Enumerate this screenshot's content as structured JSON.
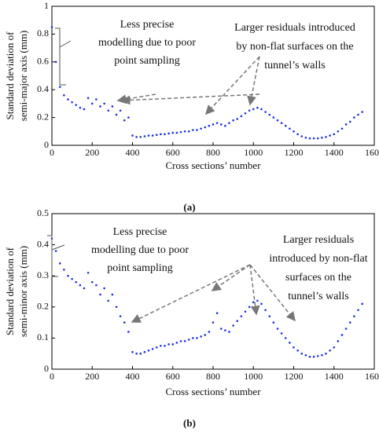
{
  "chart_data": [
    {
      "type": "scatter",
      "caption": "(a)",
      "xlabel": "Cross sections’ number",
      "ylabel": [
        "Standard deviation of",
        "semi-major axis (mm)"
      ],
      "color": "#1f2fe0",
      "xlim": [
        0,
        1600
      ],
      "ylim": [
        0,
        1
      ],
      "xticks": [
        0,
        200,
        400,
        600,
        800,
        1000,
        1200,
        1400,
        1600
      ],
      "yticks": [
        0,
        0.2,
        0.4,
        0.6,
        0.8,
        1
      ],
      "annotations": [
        [
          "Less precise",
          "modelling due to poor",
          "point sampling"
        ],
        [
          "Larger residuals introduced",
          "by non-flat surfaces on the",
          "tunnel’s walls"
        ]
      ],
      "x": [
        0,
        20,
        40,
        60,
        80,
        100,
        120,
        140,
        160,
        180,
        200,
        220,
        240,
        260,
        280,
        300,
        320,
        340,
        360,
        380,
        400,
        420,
        440,
        460,
        480,
        500,
        520,
        540,
        560,
        580,
        600,
        620,
        640,
        660,
        680,
        700,
        720,
        740,
        760,
        780,
        800,
        820,
        840,
        860,
        880,
        900,
        920,
        940,
        960,
        980,
        1000,
        1020,
        1040,
        1060,
        1080,
        1100,
        1120,
        1140,
        1160,
        1180,
        1200,
        1220,
        1240,
        1260,
        1280,
        1300,
        1320,
        1340,
        1360,
        1380,
        1400,
        1420,
        1440,
        1460,
        1480,
        1500,
        1520,
        1540
      ],
      "values": [
        0.85,
        0.6,
        0.42,
        0.36,
        0.33,
        0.31,
        0.29,
        0.27,
        0.26,
        0.34,
        0.3,
        0.33,
        0.28,
        0.3,
        0.25,
        0.28,
        0.22,
        0.25,
        0.18,
        0.2,
        0.07,
        0.06,
        0.06,
        0.065,
        0.07,
        0.07,
        0.075,
        0.08,
        0.08,
        0.085,
        0.09,
        0.09,
        0.095,
        0.1,
        0.1,
        0.11,
        0.11,
        0.12,
        0.13,
        0.14,
        0.15,
        0.16,
        0.15,
        0.14,
        0.16,
        0.18,
        0.19,
        0.21,
        0.23,
        0.25,
        0.26,
        0.27,
        0.26,
        0.24,
        0.22,
        0.2,
        0.18,
        0.16,
        0.14,
        0.12,
        0.1,
        0.08,
        0.065,
        0.055,
        0.05,
        0.05,
        0.05,
        0.055,
        0.06,
        0.07,
        0.08,
        0.1,
        0.12,
        0.15,
        0.17,
        0.2,
        0.22,
        0.24
      ]
    },
    {
      "type": "scatter",
      "caption": "(b)",
      "xlabel": "Cross sections’ number",
      "ylabel": [
        "Standard deviation of",
        "semi-minor axis (mm)"
      ],
      "color": "#1f2fe0",
      "xlim": [
        0,
        1600
      ],
      "ylim": [
        0,
        0.5
      ],
      "xticks": [
        0,
        200,
        400,
        600,
        800,
        1000,
        1200,
        1400,
        1600
      ],
      "yticks": [
        0,
        0.1,
        0.2,
        0.3,
        0.4,
        0.5
      ],
      "annotations": [
        [
          "Less precise",
          "modelling due to poor",
          "point sampling"
        ],
        [
          "Larger residuals",
          "introduced by non-flat",
          "surfaces on the",
          "tunnel’s walls"
        ]
      ],
      "x": [
        0,
        20,
        40,
        60,
        80,
        100,
        120,
        140,
        160,
        180,
        200,
        220,
        240,
        260,
        280,
        300,
        320,
        340,
        360,
        380,
        400,
        420,
        440,
        460,
        480,
        500,
        520,
        540,
        560,
        580,
        600,
        620,
        640,
        660,
        680,
        700,
        720,
        740,
        760,
        780,
        800,
        820,
        840,
        860,
        880,
        900,
        920,
        940,
        960,
        980,
        1000,
        1020,
        1040,
        1060,
        1080,
        1100,
        1120,
        1140,
        1160,
        1180,
        1200,
        1220,
        1240,
        1260,
        1280,
        1300,
        1320,
        1340,
        1360,
        1380,
        1400,
        1420,
        1440,
        1460,
        1480,
        1500,
        1520,
        1540
      ],
      "values": [
        0.42,
        0.38,
        0.34,
        0.32,
        0.3,
        0.29,
        0.28,
        0.27,
        0.26,
        0.31,
        0.28,
        0.27,
        0.24,
        0.26,
        0.22,
        0.24,
        0.2,
        0.17,
        0.15,
        0.12,
        0.055,
        0.05,
        0.05,
        0.055,
        0.06,
        0.065,
        0.07,
        0.075,
        0.075,
        0.08,
        0.08,
        0.085,
        0.09,
        0.09,
        0.095,
        0.1,
        0.1,
        0.105,
        0.11,
        0.12,
        0.15,
        0.18,
        0.13,
        0.125,
        0.12,
        0.14,
        0.155,
        0.17,
        0.185,
        0.2,
        0.215,
        0.22,
        0.21,
        0.19,
        0.17,
        0.15,
        0.13,
        0.115,
        0.1,
        0.085,
        0.07,
        0.06,
        0.05,
        0.045,
        0.04,
        0.04,
        0.042,
        0.045,
        0.05,
        0.06,
        0.07,
        0.09,
        0.11,
        0.13,
        0.15,
        0.17,
        0.19,
        0.21
      ]
    }
  ]
}
